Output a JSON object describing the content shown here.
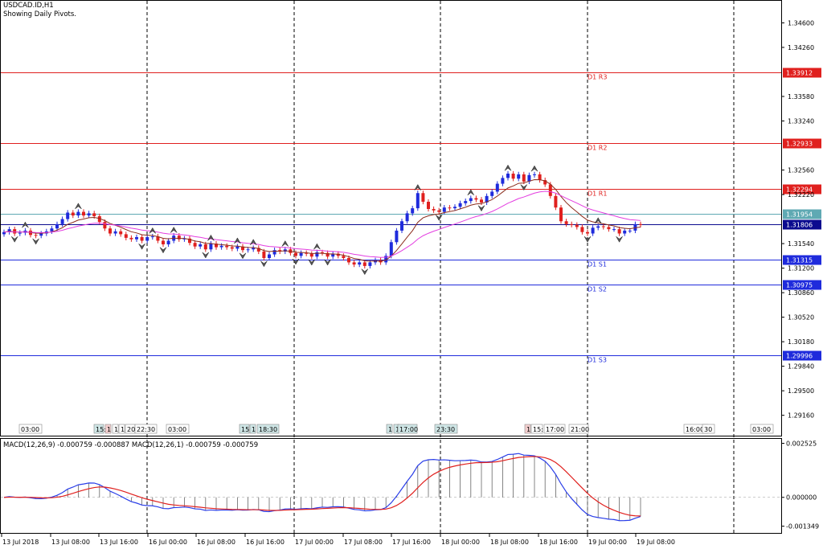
{
  "header": {
    "symbol_line": "USDCAD.ID,H1",
    "subtitle": "Showing Daily Pivots."
  },
  "macd_header": "MACD(12,26,9) -0.000759 -0.000887 MACD(12,26,1) -0.000759 -0.000759",
  "colors": {
    "bull": "#1f2bdc",
    "bear": "#e0201e",
    "resistance": "#e0201e",
    "support": "#1f2bdc",
    "ma_fast": "#8b2c1c",
    "ma_slow": "#e33de0",
    "macd_line": "#2a3ee8",
    "signal_line": "#e0201e",
    "price_bid": "#5fa9b3",
    "price_last": "#0b0b8f"
  },
  "chart_data": {
    "type": "candlestick",
    "symbol": "USDCAD.ID",
    "timeframe": "H1",
    "price_axis_ticks": [
      "1.34600",
      "1.34260",
      "1.33580",
      "1.33240",
      "1.32560",
      "1.32220",
      "1.31540",
      "1.31200",
      "1.30860",
      "1.30520",
      "1.30180",
      "1.29840",
      "1.29500",
      "1.29160"
    ],
    "price_range": [
      1.289,
      1.3485
    ],
    "time_axis_labels": [
      "13 Jul 2018",
      "13 Jul 08:00",
      "13 Jul 16:00",
      "16 Jul 00:00",
      "16 Jul 08:00",
      "16 Jul 16:00",
      "17 Jul 00:00",
      "17 Jul 08:00",
      "17 Jul 16:00",
      "18 Jul 00:00",
      "18 Jul 08:00",
      "18 Jul 16:00",
      "19 Jul 00:00",
      "19 Jul 08:00"
    ],
    "pivot_levels": [
      {
        "label": "D1 R3",
        "value": 1.33912,
        "price_label": "1.33912",
        "kind": "resistance"
      },
      {
        "label": "D1 R2",
        "value": 1.32933,
        "price_label": "1.32933",
        "kind": "resistance"
      },
      {
        "label": "D1 R1",
        "value": 1.32294,
        "price_label": "1.32294",
        "kind": "resistance"
      },
      {
        "label": "D1 S1",
        "value": 1.31315,
        "price_label": "1.31315",
        "kind": "support"
      },
      {
        "label": "D1 S2",
        "value": 1.30975,
        "price_label": "1.30975",
        "kind": "support"
      },
      {
        "label": "D1 S3",
        "value": 1.29996,
        "price_label": "1.29996",
        "kind": "support"
      }
    ],
    "price_lines": [
      {
        "label": "1.31954",
        "value": 1.31954,
        "kind": "bid"
      },
      {
        "label": "1.31806",
        "value": 1.31806,
        "kind": "last"
      }
    ],
    "session_labels": [
      "03:00",
      "15:",
      "1",
      "1",
      "1",
      "20:",
      "22:30",
      "03:00",
      "15:",
      "1",
      "18:30",
      "1",
      "1",
      "17:00",
      "23:30",
      "1",
      "15:",
      "17:00",
      "21:00",
      "16:00",
      "30",
      "03:00"
    ],
    "candles_close": [
      1.317,
      1.3174,
      1.3168,
      1.3169,
      1.3172,
      1.3166,
      1.3165,
      1.3168,
      1.3171,
      1.3175,
      1.3181,
      1.3188,
      1.3197,
      1.3193,
      1.3198,
      1.3193,
      1.3196,
      1.3192,
      1.3184,
      1.3175,
      1.3168,
      1.3171,
      1.3167,
      1.3162,
      1.316,
      1.3163,
      1.3158,
      1.3163,
      1.3164,
      1.3158,
      1.3153,
      1.3158,
      1.3165,
      1.316,
      1.3161,
      1.3155,
      1.315,
      1.3153,
      1.3146,
      1.3154,
      1.3149,
      1.3151,
      1.3149,
      1.3147,
      1.315,
      1.3145,
      1.3146,
      1.3148,
      1.3143,
      1.3134,
      1.3139,
      1.3145,
      1.3143,
      1.3146,
      1.3141,
      1.3137,
      1.3141,
      1.314,
      1.3136,
      1.3142,
      1.3141,
      1.3136,
      1.314,
      1.3137,
      1.3134,
      1.3128,
      1.3125,
      1.3128,
      1.3123,
      1.3128,
      1.3131,
      1.3128,
      1.3137,
      1.3156,
      1.3172,
      1.3185,
      1.3196,
      1.3203,
      1.3224,
      1.3212,
      1.3202,
      1.32,
      1.3198,
      1.3204,
      1.3203,
      1.3205,
      1.321,
      1.3213,
      1.3217,
      1.3215,
      1.3211,
      1.322,
      1.3226,
      1.3237,
      1.3245,
      1.3251,
      1.3244,
      1.325,
      1.324,
      1.3249,
      1.325,
      1.3242,
      1.3236,
      1.322,
      1.3204,
      1.3185,
      1.3181,
      1.318,
      1.3177,
      1.317,
      1.3168,
      1.3176,
      1.3178,
      1.3177,
      1.3174,
      1.3174,
      1.3168,
      1.3172,
      1.3172,
      1.3181,
      1.318
    ],
    "ma_fast_name": "MA fast",
    "ma_slow_name": "MA slow"
  },
  "macd_chart": {
    "type": "histogram+line",
    "axis_ticks": [
      "0.002525",
      "0.000000",
      "-0.001349"
    ],
    "range": [
      -0.00155,
      0.00262
    ]
  }
}
